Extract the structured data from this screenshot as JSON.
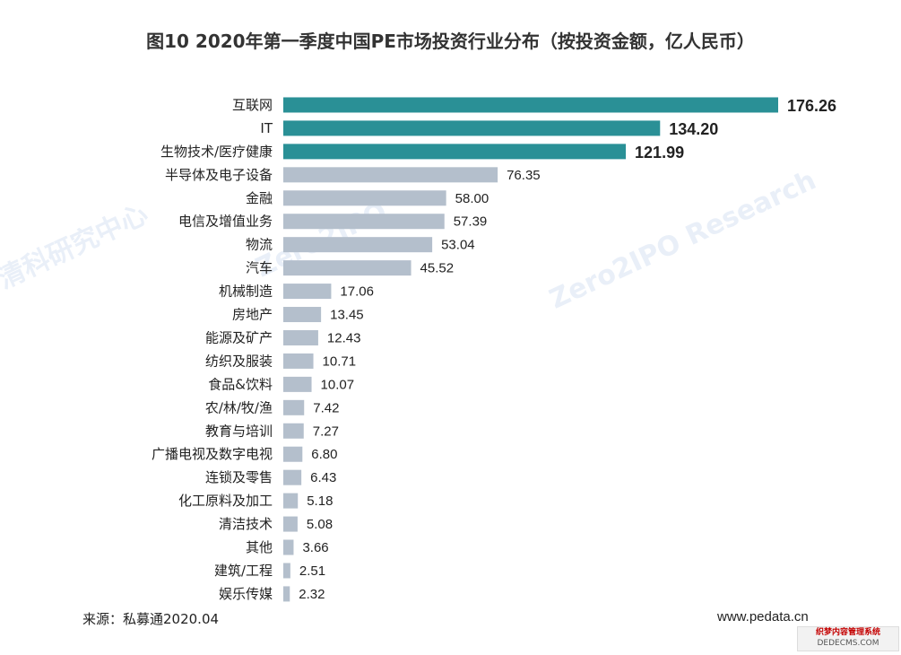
{
  "title": "图10 2020年第一季度中国PE市场投资行业分布（按投资金额，亿人民币）",
  "source": "来源：私募通2020.04",
  "website": "www.pedata.cn",
  "brand": {
    "line1": "织梦内容管理系统",
    "line2": "DEDECMS.COM"
  },
  "watermark": {
    "line1": "Zero2IPO",
    "line2": "清科研究中心",
    "line3": "Zero2IPO Research"
  },
  "colors": {
    "highlight": "#2a9096",
    "normal": "#b4bfcc"
  },
  "chart_data": {
    "type": "bar",
    "orientation": "horizontal",
    "title": "图10 2020年第一季度中国PE市场投资行业分布（按投资金额，亿人民币）",
    "xlabel": "",
    "ylabel": "",
    "xlim": [
      0,
      180
    ],
    "grid": false,
    "legend": "none",
    "categories": [
      "互联网",
      "IT",
      "生物技术/医疗健康",
      "半导体及电子设备",
      "金融",
      "电信及增值业务",
      "物流",
      "汽车",
      "机械制造",
      "房地产",
      "能源及矿产",
      "纺织及服装",
      "食品&饮料",
      "农/林/牧/渔",
      "教育与培训",
      "广播电视及数字电视",
      "连锁及零售",
      "化工原料及加工",
      "清洁技术",
      "其他",
      "建筑/工程",
      "娱乐传媒"
    ],
    "values": [
      176.26,
      134.2,
      121.99,
      76.35,
      58.0,
      57.39,
      53.04,
      45.52,
      17.06,
      13.45,
      12.43,
      10.71,
      10.07,
      7.42,
      7.27,
      6.8,
      6.43,
      5.18,
      5.08,
      3.66,
      2.51,
      2.32
    ],
    "value_labels": [
      "176.26",
      "134.20",
      "121.99",
      "76.35",
      "58.00",
      "57.39",
      "53.04",
      "45.52",
      "17.06",
      "13.45",
      "12.43",
      "10.71",
      "10.07",
      "7.42",
      "7.27",
      "6.80",
      "6.43",
      "5.18",
      "5.08",
      "3.66",
      "2.51",
      "2.32"
    ],
    "highlight_count": 3
  }
}
